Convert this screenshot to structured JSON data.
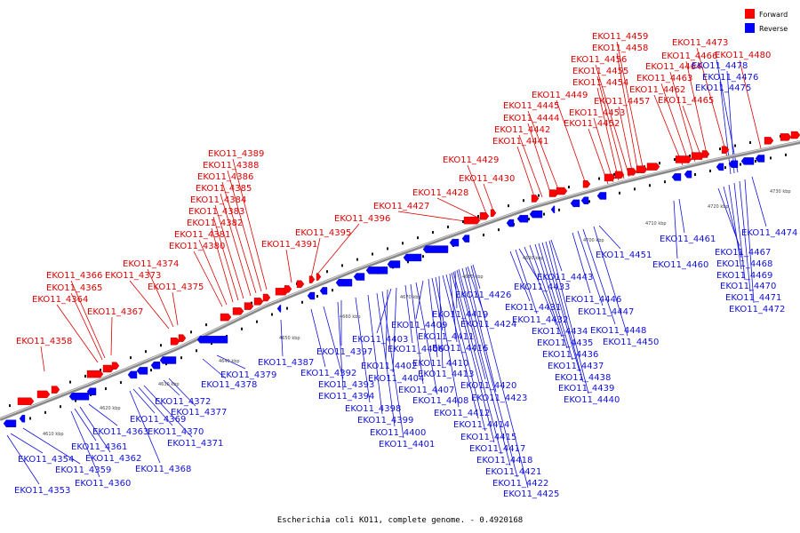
{
  "legend": {
    "forward_label": "Forward",
    "reverse_label": "Reverse",
    "forward_color": "#ff0000",
    "reverse_color": "#0000ff"
  },
  "caption": "Escherichia coli KO11, complete genome. - 0.4920168",
  "colors": {
    "backbone": "#888888",
    "forward": "#ff0000",
    "reverse": "#0000ff",
    "forward_text": "#e00000",
    "reverse_text": "#1010e0"
  },
  "ticks": [
    "4610 kbp",
    "4620 kbp",
    "4630 kbp",
    "4640 kbp",
    "4650 kbp",
    "4660 kbp",
    "4670 kbp",
    "4680 kbp",
    "4690 kbp",
    "4700 kbp",
    "4710 kbp",
    "4720 kbp",
    "4730 kbp"
  ],
  "forward_genes": [
    "EKO11_4358",
    "EKO11_4364",
    "EKO11_4365",
    "EKO11_4366",
    "EKO11_4367",
    "EKO11_4373",
    "EKO11_4374",
    "EKO11_4375",
    "EKO11_4380",
    "EKO11_4381",
    "EKO11_4382",
    "EKO11_4383",
    "EKO11_4384",
    "EKO11_4385",
    "EKO11_4386",
    "EKO11_4388",
    "EKO11_4389",
    "EKO11_4391",
    "EKO11_4395",
    "EKO11_4396",
    "EKO11_4427",
    "EKO11_4428",
    "EKO11_4429",
    "EKO11_4430",
    "EKO11_4441",
    "EKO11_4442",
    "EKO11_4444",
    "EKO11_4445",
    "EKO11_4449",
    "EKO11_4452",
    "EKO11_4453",
    "EKO11_4454",
    "EKO11_4455",
    "EKO11_4456",
    "EKO11_4457",
    "EKO11_4458",
    "EKO11_4459",
    "EKO11_4462",
    "EKO11_4463",
    "EKO11_4464",
    "EKO11_4465",
    "EKO11_4466",
    "EKO11_4473",
    "EKO11_4480"
  ],
  "reverse_genes": [
    "EKO11_4353",
    "EKO11_4354",
    "EKO11_4359",
    "EKO11_4360",
    "EKO11_4361",
    "EKO11_4362",
    "EKO11_4363",
    "EKO11_4368",
    "EKO11_4369",
    "EKO11_4370",
    "EKO11_4371",
    "EKO11_4372",
    "EKO11_4377",
    "EKO11_4378",
    "EKO11_4379",
    "EKO11_4387",
    "EKO11_4392",
    "EKO11_4393",
    "EKO11_4394",
    "EKO11_4397",
    "EKO11_4398",
    "EKO11_4399",
    "EKO11_4400",
    "EKO11_4401",
    "EKO11_4402",
    "EKO11_4403",
    "EKO11_4404",
    "EKO11_4406",
    "EKO11_4407",
    "EKO11_4408",
    "EKO11_4409",
    "EKO11_4410",
    "EKO11_4411",
    "EKO11_4412",
    "EKO11_4413",
    "EKO11_4414",
    "EKO11_4415",
    "EKO11_4416",
    "EKO11_4417",
    "EKO11_4418",
    "EKO11_4419",
    "EKO11_4420",
    "EKO11_4421",
    "EKO11_4422",
    "EKO11_4423",
    "EKO11_4424",
    "EKO11_4425",
    "EKO11_4426",
    "EKO11_4431",
    "EKO11_4432",
    "EKO11_4433",
    "EKO11_4434",
    "EKO11_4435",
    "EKO11_4436",
    "EKO11_4437",
    "EKO11_4438",
    "EKO11_4439",
    "EKO11_4440",
    "EKO11_4443",
    "EKO11_4446",
    "EKO11_4447",
    "EKO11_4448",
    "EKO11_4450",
    "EKO11_4451",
    "EKO11_4460",
    "EKO11_4461",
    "EKO11_4467",
    "EKO11_4468",
    "EKO11_4469",
    "EKO11_4470",
    "EKO11_4471",
    "EKO11_4472",
    "EKO11_4474",
    "EKO11_4475",
    "EKO11_4476",
    "EKO11_4478"
  ]
}
